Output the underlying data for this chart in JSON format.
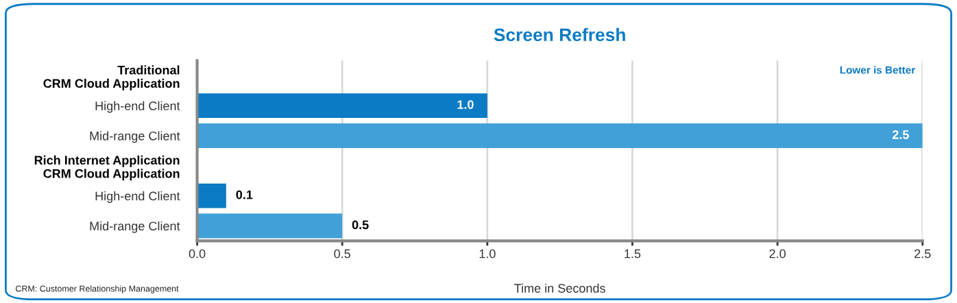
{
  "chart_data": {
    "type": "bar",
    "orientation": "horizontal",
    "title": "Screen Refresh",
    "xlabel": "Time in Seconds",
    "categories": [
      "Traditional\nCRM Cloud Application",
      "High-end Client",
      "Mid-range Client",
      "Rich Internet Application\nCRM Cloud Application",
      "High-end Client",
      "Mid-range Client"
    ],
    "values": [
      null,
      1.0,
      2.5,
      null,
      0.1,
      0.5
    ],
    "colors": [
      null,
      "#0a7bc4",
      "#41a0d8",
      null,
      "#0a7bc4",
      "#41a0d8"
    ],
    "value_labels": [
      null,
      "1.0",
      "2.5",
      null,
      "0.1",
      "0.5"
    ],
    "xlim": [
      0,
      2.5
    ],
    "xticks": [
      {
        "value": 0,
        "label": "0.0"
      },
      {
        "value": 0.5,
        "label": "0.5"
      },
      {
        "value": 1,
        "label": "1.0"
      },
      {
        "value": 1.5,
        "label": "1.5"
      },
      {
        "value": 2,
        "label": "2.0"
      },
      {
        "value": 2.5,
        "label": "2.5"
      }
    ],
    "grid": "x",
    "legend": false,
    "annotations": [
      "Lower is Better",
      "CRM: Customer Relationship Management"
    ]
  }
}
